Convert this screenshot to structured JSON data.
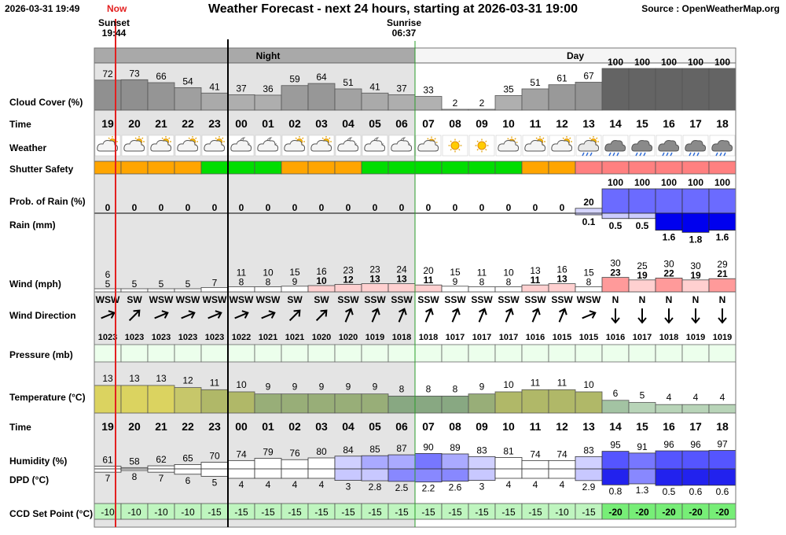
{
  "header": {
    "date": "2026-03-31 19:49",
    "title": "Weather Forecast - next 24 hours, starting at 2026-03-31 19:00",
    "source": "Source : OpenWeatherMap.org",
    "now": "Now"
  },
  "sun": {
    "sunset_label": "Sunset",
    "sunset_time": "19:44",
    "sunrise_label": "Sunrise",
    "sunrise_time": "06:37"
  },
  "period_labels": {
    "night": "Night",
    "day": "Day"
  },
  "row_labels": {
    "cloud": "Cloud Cover (%)",
    "time": "Time",
    "weather": "Weather",
    "shutter": "Shutter Safety",
    "rain_prob": "Prob. of Rain (%)",
    "rain": "Rain (mm)",
    "wind": "Wind (mph)",
    "wind_dir": "Wind Direction",
    "pressure": "Pressure (mb)",
    "temperature": "Temperature (°C)",
    "time2": "Time",
    "humidity": "Humidity (%)",
    "dpd": "DPD (°C)",
    "ccd": "CCD Set Point (°C)"
  },
  "chart_data": {
    "type": "table",
    "hours": [
      "19",
      "20",
      "21",
      "22",
      "23",
      "00",
      "01",
      "02",
      "03",
      "04",
      "05",
      "06",
      "07",
      "08",
      "09",
      "10",
      "11",
      "12",
      "13",
      "14",
      "15",
      "16",
      "17",
      "18"
    ],
    "cloud_cover": [
      72,
      73,
      66,
      54,
      41,
      37,
      36,
      59,
      64,
      51,
      41,
      37,
      33,
      2,
      2,
      35,
      51,
      61,
      67,
      100,
      100,
      100,
      100,
      100
    ],
    "weather_icons": [
      "partly-cloudy-icon",
      "partly-cloudy-icon",
      "partly-cloudy-icon",
      "partly-cloudy-icon",
      "partly-cloudy-icon",
      "night-partly-cloudy-icon",
      "night-partly-cloudy-icon",
      "partly-cloudy-icon",
      "partly-cloudy-icon",
      "night-partly-cloudy-icon",
      "night-partly-cloudy-icon",
      "night-partly-cloudy-icon",
      "sun-behind-cloud-icon",
      "sun-icon",
      "sun-icon",
      "sun-behind-cloud-icon",
      "partly-cloudy-icon",
      "partly-cloudy-icon",
      "light-rain-icon",
      "rain-icon",
      "rain-icon",
      "rain-icon",
      "rain-icon",
      "rain-icon"
    ],
    "shutter_safety": [
      "orange",
      "orange",
      "orange",
      "orange",
      "green",
      "green",
      "green",
      "orange",
      "orange",
      "orange",
      "green",
      "green",
      "green",
      "green",
      "green",
      "green",
      "orange",
      "orange",
      "red",
      "red",
      "red",
      "red",
      "red",
      "red"
    ],
    "rain_probability": [
      0,
      0,
      0,
      0,
      0,
      0,
      0,
      0,
      0,
      0,
      0,
      0,
      0,
      0,
      0,
      0,
      0,
      0,
      20,
      100,
      100,
      100,
      100,
      100
    ],
    "rain_mm": [
      null,
      null,
      null,
      null,
      null,
      null,
      null,
      null,
      null,
      null,
      null,
      null,
      null,
      null,
      null,
      null,
      null,
      null,
      0.1,
      0.5,
      0.5,
      1.6,
      1.8,
      1.6
    ],
    "wind_gust": [
      6,
      null,
      null,
      null,
      null,
      11,
      10,
      15,
      16,
      23,
      23,
      24,
      20,
      15,
      11,
      10,
      13,
      16,
      15,
      30,
      25,
      30,
      30,
      29
    ],
    "wind_speed": [
      5,
      5,
      5,
      5,
      7,
      8,
      8,
      9,
      10,
      12,
      13,
      13,
      11,
      9,
      8,
      8,
      11,
      13,
      8,
      23,
      19,
      22,
      19,
      21
    ],
    "wind_direction": [
      "WSW",
      "SW",
      "WSW",
      "WSW",
      "WSW",
      "WSW",
      "WSW",
      "SW",
      "SW",
      "SSW",
      "SSW",
      "SSW",
      "SSW",
      "SSW",
      "SSW",
      "SSW",
      "SSW",
      "SSW",
      "WSW",
      "N",
      "N",
      "N",
      "N",
      "N"
    ],
    "pressure": [
      1023,
      1023,
      1023,
      1023,
      1023,
      1022,
      1021,
      1021,
      1020,
      1020,
      1019,
      1018,
      1018,
      1017,
      1017,
      1017,
      1016,
      1015,
      1015,
      1016,
      1017,
      1018,
      1019,
      1019
    ],
    "temperature": [
      13,
      13,
      13,
      12,
      11,
      10,
      9,
      9,
      9,
      9,
      9,
      8,
      8,
      8,
      9,
      10,
      11,
      11,
      10,
      6,
      5,
      4,
      4,
      4
    ],
    "humidity": [
      61,
      58,
      62,
      65,
      70,
      74,
      79,
      76,
      80,
      84,
      85,
      87,
      90,
      89,
      83,
      81,
      74,
      74,
      83,
      95,
      91,
      96,
      96,
      97
    ],
    "dpd": [
      7,
      8,
      7,
      6,
      5,
      4,
      4,
      4,
      4,
      3,
      2.8,
      2.5,
      2.2,
      2.6,
      3,
      4,
      4,
      4,
      2.9,
      0.8,
      1.3,
      0.5,
      0.6,
      0.6
    ],
    "ccd_set_point": [
      -10,
      -10,
      -10,
      -10,
      -15,
      -15,
      -15,
      -15,
      -15,
      -15,
      -15,
      -15,
      -15,
      -15,
      -15,
      -15,
      -15,
      -10,
      -15,
      -20,
      -20,
      -20,
      -20,
      -20
    ]
  }
}
